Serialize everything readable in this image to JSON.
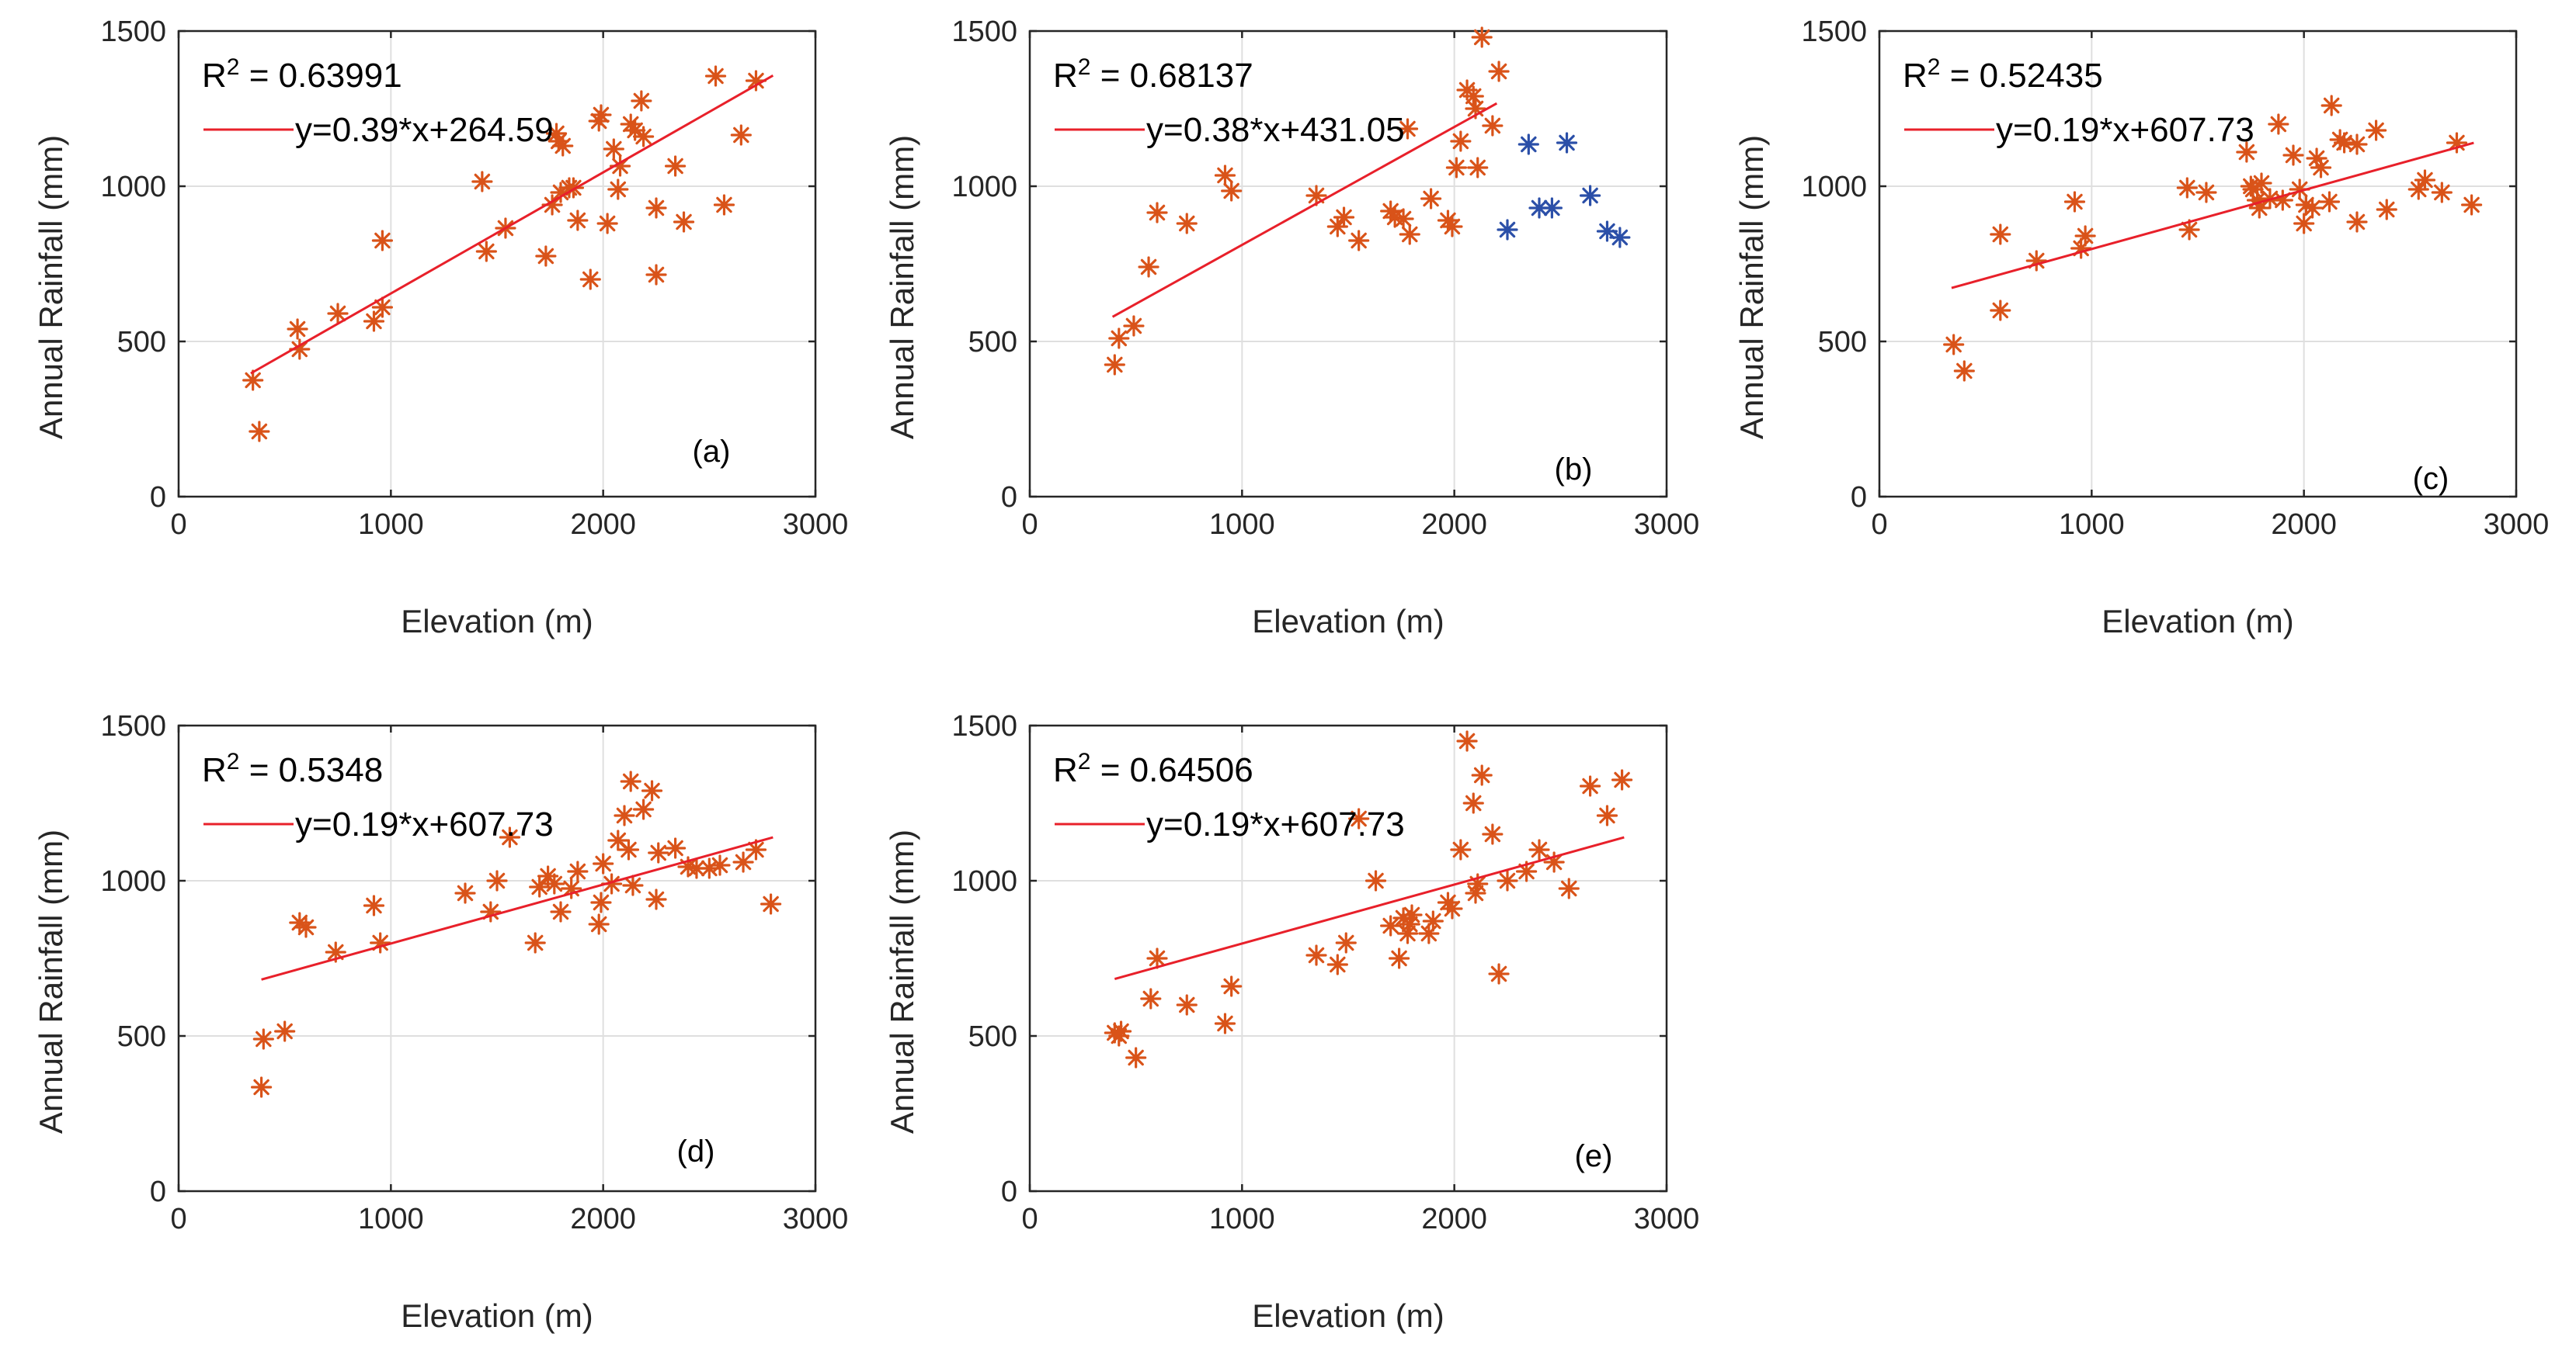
{
  "colors": {
    "orange": "#d95319",
    "blue": "#2b4fa8",
    "fit": "#e8202a"
  },
  "chart_data": [
    {
      "type": "scatter",
      "panel_label": "(a)",
      "xlabel": "Elevation (m)",
      "ylabel": "Annual Rainfall (mm)",
      "xlim": [
        0,
        3000
      ],
      "ylim": [
        0,
        1500
      ],
      "xticks": [
        "0",
        "1000",
        "2000",
        "3000"
      ],
      "yticks": [
        "0",
        "500",
        "1000",
        "1500"
      ],
      "r2_prefix": "R",
      "r2_sup": "2",
      "r2_value": " = 0.63991",
      "legend": "y=0.39*x+264.59",
      "fit": {
        "slope": 0.39,
        "intercept": 264.59,
        "x_range": [
          340,
          2800
        ]
      },
      "grid": true,
      "points": [
        {
          "x": 350,
          "y": 375
        },
        {
          "x": 380,
          "y": 210
        },
        {
          "x": 560,
          "y": 540
        },
        {
          "x": 570,
          "y": 475
        },
        {
          "x": 750,
          "y": 590
        },
        {
          "x": 920,
          "y": 565
        },
        {
          "x": 960,
          "y": 610
        },
        {
          "x": 960,
          "y": 825
        },
        {
          "x": 1430,
          "y": 1015
        },
        {
          "x": 1450,
          "y": 790
        },
        {
          "x": 1540,
          "y": 865
        },
        {
          "x": 1730,
          "y": 775
        },
        {
          "x": 1760,
          "y": 940
        },
        {
          "x": 1780,
          "y": 1170
        },
        {
          "x": 1790,
          "y": 1145
        },
        {
          "x": 1800,
          "y": 980
        },
        {
          "x": 1810,
          "y": 1130
        },
        {
          "x": 1840,
          "y": 995
        },
        {
          "x": 1860,
          "y": 995
        },
        {
          "x": 1880,
          "y": 890
        },
        {
          "x": 1940,
          "y": 700
        },
        {
          "x": 1980,
          "y": 1210
        },
        {
          "x": 1990,
          "y": 1230
        },
        {
          "x": 2020,
          "y": 880
        },
        {
          "x": 2050,
          "y": 1120
        },
        {
          "x": 2070,
          "y": 990
        },
        {
          "x": 2080,
          "y": 1065
        },
        {
          "x": 2130,
          "y": 1200
        },
        {
          "x": 2150,
          "y": 1180
        },
        {
          "x": 2180,
          "y": 1275
        },
        {
          "x": 2190,
          "y": 1160
        },
        {
          "x": 2250,
          "y": 930
        },
        {
          "x": 2250,
          "y": 715
        },
        {
          "x": 2340,
          "y": 1065
        },
        {
          "x": 2380,
          "y": 885
        },
        {
          "x": 2530,
          "y": 1355
        },
        {
          "x": 2570,
          "y": 940
        },
        {
          "x": 2650,
          "y": 1165
        },
        {
          "x": 2720,
          "y": 1340
        }
      ]
    },
    {
      "type": "scatter",
      "panel_label": "(b)",
      "xlabel": "Elevation (m)",
      "ylabel": "Annual Rainfall (mm)",
      "xlim": [
        0,
        3000
      ],
      "ylim": [
        0,
        1500
      ],
      "xticks": [
        "0",
        "1000",
        "2000",
        "3000"
      ],
      "yticks": [
        "0",
        "500",
        "1000",
        "1500"
      ],
      "r2_prefix": "R",
      "r2_sup": "2",
      "r2_value": " = 0.68137",
      "legend": "y=0.38*x+431.05",
      "fit": {
        "slope": 0.38,
        "intercept": 431.05,
        "x_range": [
          390,
          2200
        ]
      },
      "grid": true,
      "points": [
        {
          "x": 400,
          "y": 425
        },
        {
          "x": 420,
          "y": 510
        },
        {
          "x": 490,
          "y": 550
        },
        {
          "x": 560,
          "y": 740
        },
        {
          "x": 600,
          "y": 915
        },
        {
          "x": 740,
          "y": 880
        },
        {
          "x": 920,
          "y": 1035
        },
        {
          "x": 950,
          "y": 985
        },
        {
          "x": 1350,
          "y": 970
        },
        {
          "x": 1450,
          "y": 870
        },
        {
          "x": 1480,
          "y": 900
        },
        {
          "x": 1550,
          "y": 825
        },
        {
          "x": 1700,
          "y": 920
        },
        {
          "x": 1720,
          "y": 900
        },
        {
          "x": 1760,
          "y": 895
        },
        {
          "x": 1780,
          "y": 1185
        },
        {
          "x": 1790,
          "y": 845
        },
        {
          "x": 1890,
          "y": 960
        },
        {
          "x": 1970,
          "y": 890
        },
        {
          "x": 1990,
          "y": 870
        },
        {
          "x": 2010,
          "y": 1060
        },
        {
          "x": 2030,
          "y": 1145
        },
        {
          "x": 2060,
          "y": 1310
        },
        {
          "x": 2090,
          "y": 1290
        },
        {
          "x": 2100,
          "y": 1250
        },
        {
          "x": 2110,
          "y": 1060
        },
        {
          "x": 2130,
          "y": 1480
        },
        {
          "x": 2180,
          "y": 1195
        },
        {
          "x": 2210,
          "y": 1370
        }
      ],
      "points_b": [
        {
          "x": 2250,
          "y": 860
        },
        {
          "x": 2350,
          "y": 1135
        },
        {
          "x": 2400,
          "y": 930
        },
        {
          "x": 2460,
          "y": 930
        },
        {
          "x": 2530,
          "y": 1140
        },
        {
          "x": 2640,
          "y": 970
        },
        {
          "x": 2720,
          "y": 855
        },
        {
          "x": 2780,
          "y": 835
        }
      ]
    },
    {
      "type": "scatter",
      "panel_label": "(c)",
      "xlabel": "Elevation (m)",
      "ylabel": "Annual Rainfall (mm)",
      "xlim": [
        0,
        3000
      ],
      "ylim": [
        0,
        1500
      ],
      "xticks": [
        "0",
        "1000",
        "2000",
        "3000"
      ],
      "yticks": [
        "0",
        "500",
        "1000",
        "1500"
      ],
      "r2_prefix": "R",
      "r2_sup": "2",
      "r2_value": " = 0.52435",
      "legend": "y=0.19*x+607.73",
      "fit": {
        "slope": 0.19,
        "intercept": 607.73,
        "x_range": [
          340,
          2800
        ]
      },
      "grid": true,
      "points": [
        {
          "x": 350,
          "y": 490
        },
        {
          "x": 400,
          "y": 405
        },
        {
          "x": 570,
          "y": 845
        },
        {
          "x": 570,
          "y": 600
        },
        {
          "x": 740,
          "y": 760
        },
        {
          "x": 920,
          "y": 950
        },
        {
          "x": 950,
          "y": 800
        },
        {
          "x": 970,
          "y": 840
        },
        {
          "x": 1450,
          "y": 995
        },
        {
          "x": 1460,
          "y": 860
        },
        {
          "x": 1540,
          "y": 980
        },
        {
          "x": 1730,
          "y": 1110
        },
        {
          "x": 1750,
          "y": 1000
        },
        {
          "x": 1760,
          "y": 990
        },
        {
          "x": 1780,
          "y": 955
        },
        {
          "x": 1790,
          "y": 930
        },
        {
          "x": 1800,
          "y": 1010
        },
        {
          "x": 1840,
          "y": 960
        },
        {
          "x": 1880,
          "y": 1200
        },
        {
          "x": 1900,
          "y": 955
        },
        {
          "x": 1950,
          "y": 1100
        },
        {
          "x": 1980,
          "y": 990
        },
        {
          "x": 2000,
          "y": 880
        },
        {
          "x": 2010,
          "y": 940
        },
        {
          "x": 2040,
          "y": 930
        },
        {
          "x": 2060,
          "y": 1090
        },
        {
          "x": 2080,
          "y": 1060
        },
        {
          "x": 2120,
          "y": 950
        },
        {
          "x": 2130,
          "y": 1260
        },
        {
          "x": 2170,
          "y": 1150
        },
        {
          "x": 2190,
          "y": 1140
        },
        {
          "x": 2250,
          "y": 1135
        },
        {
          "x": 2250,
          "y": 885
        },
        {
          "x": 2340,
          "y": 1180
        },
        {
          "x": 2390,
          "y": 925
        },
        {
          "x": 2540,
          "y": 990
        },
        {
          "x": 2570,
          "y": 1020
        },
        {
          "x": 2650,
          "y": 980
        },
        {
          "x": 2720,
          "y": 1140
        },
        {
          "x": 2790,
          "y": 940
        }
      ]
    },
    {
      "type": "scatter",
      "panel_label": "(d)",
      "xlabel": "Elevation (m)",
      "ylabel": "Annual Rainfall (mm)",
      "xlim": [
        0,
        3000
      ],
      "ylim": [
        0,
        1500
      ],
      "xticks": [
        "0",
        "1000",
        "2000",
        "3000"
      ],
      "yticks": [
        "0",
        "500",
        "1000",
        "1500"
      ],
      "r2_prefix": "R",
      "r2_sup": "2",
      "r2_value": " = 0.5348",
      "legend": "y=0.19*x+607.73",
      "fit": {
        "slope": 0.19,
        "intercept": 607.73,
        "x_range": [
          390,
          2800
        ]
      },
      "grid": true,
      "points": [
        {
          "x": 390,
          "y": 335
        },
        {
          "x": 400,
          "y": 490
        },
        {
          "x": 500,
          "y": 515
        },
        {
          "x": 570,
          "y": 865
        },
        {
          "x": 600,
          "y": 850
        },
        {
          "x": 740,
          "y": 770
        },
        {
          "x": 920,
          "y": 920
        },
        {
          "x": 950,
          "y": 800
        },
        {
          "x": 1350,
          "y": 960
        },
        {
          "x": 1470,
          "y": 900
        },
        {
          "x": 1500,
          "y": 1000
        },
        {
          "x": 1560,
          "y": 1140
        },
        {
          "x": 1680,
          "y": 800
        },
        {
          "x": 1700,
          "y": 980
        },
        {
          "x": 1740,
          "y": 1015
        },
        {
          "x": 1770,
          "y": 990
        },
        {
          "x": 1800,
          "y": 900
        },
        {
          "x": 1850,
          "y": 975
        },
        {
          "x": 1880,
          "y": 1030
        },
        {
          "x": 1980,
          "y": 860
        },
        {
          "x": 1990,
          "y": 930
        },
        {
          "x": 2000,
          "y": 1055
        },
        {
          "x": 2040,
          "y": 990
        },
        {
          "x": 2070,
          "y": 1130
        },
        {
          "x": 2100,
          "y": 1210
        },
        {
          "x": 2120,
          "y": 1100
        },
        {
          "x": 2130,
          "y": 1320
        },
        {
          "x": 2140,
          "y": 985
        },
        {
          "x": 2190,
          "y": 1230
        },
        {
          "x": 2230,
          "y": 1290
        },
        {
          "x": 2250,
          "y": 940
        },
        {
          "x": 2260,
          "y": 1090
        },
        {
          "x": 2340,
          "y": 1105
        },
        {
          "x": 2400,
          "y": 1045
        },
        {
          "x": 2440,
          "y": 1040
        },
        {
          "x": 2500,
          "y": 1040
        },
        {
          "x": 2550,
          "y": 1050
        },
        {
          "x": 2660,
          "y": 1060
        },
        {
          "x": 2720,
          "y": 1100
        },
        {
          "x": 2790,
          "y": 925
        }
      ]
    },
    {
      "type": "scatter",
      "panel_label": "(e)",
      "xlabel": "Elevation (m)",
      "ylabel": "Annual Rainfall (mm)",
      "xlim": [
        0,
        3000
      ],
      "ylim": [
        0,
        1500
      ],
      "xticks": [
        "0",
        "1000",
        "2000",
        "3000"
      ],
      "yticks": [
        "0",
        "500",
        "1000",
        "1500"
      ],
      "r2_prefix": "R",
      "r2_sup": "2",
      "r2_value": " = 0.64506",
      "legend": "y=0.19*x+607.73",
      "fit": {
        "slope": 0.19,
        "intercept": 607.73,
        "x_range": [
          400,
          2800
        ]
      },
      "grid": true,
      "points": [
        {
          "x": 400,
          "y": 510
        },
        {
          "x": 420,
          "y": 500
        },
        {
          "x": 430,
          "y": 515
        },
        {
          "x": 500,
          "y": 430
        },
        {
          "x": 570,
          "y": 620
        },
        {
          "x": 600,
          "y": 750
        },
        {
          "x": 740,
          "y": 600
        },
        {
          "x": 920,
          "y": 540
        },
        {
          "x": 950,
          "y": 660
        },
        {
          "x": 1350,
          "y": 760
        },
        {
          "x": 1450,
          "y": 730
        },
        {
          "x": 1490,
          "y": 800
        },
        {
          "x": 1550,
          "y": 1200
        },
        {
          "x": 1630,
          "y": 1000
        },
        {
          "x": 1700,
          "y": 855
        },
        {
          "x": 1740,
          "y": 750
        },
        {
          "x": 1760,
          "y": 880
        },
        {
          "x": 1780,
          "y": 830
        },
        {
          "x": 1790,
          "y": 860
        },
        {
          "x": 1800,
          "y": 890
        },
        {
          "x": 1880,
          "y": 830
        },
        {
          "x": 1900,
          "y": 870
        },
        {
          "x": 1970,
          "y": 930
        },
        {
          "x": 1990,
          "y": 910
        },
        {
          "x": 2030,
          "y": 1100
        },
        {
          "x": 2060,
          "y": 1450
        },
        {
          "x": 2090,
          "y": 1250
        },
        {
          "x": 2100,
          "y": 960
        },
        {
          "x": 2110,
          "y": 990
        },
        {
          "x": 2130,
          "y": 1340
        },
        {
          "x": 2180,
          "y": 1150
        },
        {
          "x": 2210,
          "y": 700
        },
        {
          "x": 2250,
          "y": 1000
        },
        {
          "x": 2340,
          "y": 1030
        },
        {
          "x": 2400,
          "y": 1100
        },
        {
          "x": 2470,
          "y": 1060
        },
        {
          "x": 2540,
          "y": 975
        },
        {
          "x": 2640,
          "y": 1305
        },
        {
          "x": 2720,
          "y": 1210
        },
        {
          "x": 2790,
          "y": 1325
        }
      ]
    }
  ]
}
